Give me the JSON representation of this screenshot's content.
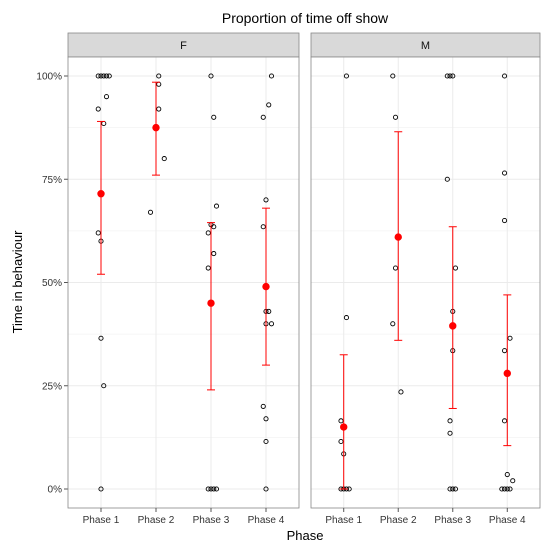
{
  "chart_data": {
    "type": "scatter",
    "title": "Proportion of time off show",
    "xlabel": "Phase",
    "ylabel": "Time in behaviour",
    "categories": [
      "Phase 1",
      "Phase 2",
      "Phase 3",
      "Phase 4"
    ],
    "y_ticks": [
      "0%",
      "25%",
      "50%",
      "75%",
      "100%"
    ],
    "ylim": [
      0,
      1
    ],
    "grid": true,
    "colors": {
      "panel": "#ffffff",
      "panel_border": "#888888",
      "strip": "#d9d9d9",
      "grid": "#ebebeb",
      "points": "#000000",
      "summary": "#ff0000"
    },
    "panels": [
      {
        "strip": "F",
        "points": [
          [
            0.95,
            1.0
          ],
          [
            1.0,
            1.0
          ],
          [
            1.05,
            1.0
          ],
          [
            1.1,
            1.0
          ],
          [
            1.15,
            1.0
          ],
          [
            1.1,
            0.95
          ],
          [
            0.95,
            0.92
          ],
          [
            1.05,
            0.885
          ],
          [
            0.95,
            0.62
          ],
          [
            1.0,
            0.6
          ],
          [
            1.0,
            0.365
          ],
          [
            1.05,
            0.25
          ],
          [
            1.0,
            0.0
          ],
          [
            2.05,
            1.0
          ],
          [
            2.05,
            0.98
          ],
          [
            2.05,
            0.92
          ],
          [
            2.15,
            0.8
          ],
          [
            1.9,
            0.67
          ],
          [
            3.0,
            1.0
          ],
          [
            3.05,
            0.9
          ],
          [
            3.1,
            0.685
          ],
          [
            3.0,
            0.64
          ],
          [
            3.05,
            0.635
          ],
          [
            2.95,
            0.62
          ],
          [
            3.05,
            0.57
          ],
          [
            2.95,
            0.535
          ],
          [
            2.95,
            0.0
          ],
          [
            3.0,
            0.0
          ],
          [
            3.05,
            0.0
          ],
          [
            3.1,
            0.0
          ],
          [
            4.1,
            1.0
          ],
          [
            4.05,
            0.93
          ],
          [
            3.95,
            0.9
          ],
          [
            4.0,
            0.7
          ],
          [
            3.95,
            0.635
          ],
          [
            4.0,
            0.43
          ],
          [
            4.05,
            0.43
          ],
          [
            4.0,
            0.4
          ],
          [
            4.1,
            0.4
          ],
          [
            3.95,
            0.2
          ],
          [
            4.0,
            0.17
          ],
          [
            4.0,
            0.115
          ],
          [
            4.0,
            0.0
          ]
        ],
        "summary": [
          {
            "phase": "Phase 1",
            "mean": 0.715,
            "low": 0.52,
            "high": 0.89
          },
          {
            "phase": "Phase 2",
            "mean": 0.875,
            "low": 0.76,
            "high": 0.985
          },
          {
            "phase": "Phase 3",
            "mean": 0.45,
            "low": 0.24,
            "high": 0.645
          },
          {
            "phase": "Phase 4",
            "mean": 0.49,
            "low": 0.3,
            "high": 0.68
          }
        ]
      },
      {
        "strip": "M",
        "points": [
          [
            1.05,
            1.0
          ],
          [
            1.05,
            0.415
          ],
          [
            0.95,
            0.165
          ],
          [
            0.95,
            0.115
          ],
          [
            1.0,
            0.085
          ],
          [
            0.95,
            0.0
          ],
          [
            1.0,
            0.0
          ],
          [
            1.05,
            0.0
          ],
          [
            1.1,
            0.0
          ],
          [
            1.9,
            1.0
          ],
          [
            1.95,
            0.9
          ],
          [
            1.95,
            0.535
          ],
          [
            1.9,
            0.4
          ],
          [
            2.05,
            0.235
          ],
          [
            2.9,
            1.0
          ],
          [
            2.95,
            1.0
          ],
          [
            3.0,
            1.0
          ],
          [
            2.9,
            0.75
          ],
          [
            3.05,
            0.535
          ],
          [
            3.0,
            0.43
          ],
          [
            3.0,
            0.335
          ],
          [
            2.95,
            0.165
          ],
          [
            2.95,
            0.135
          ],
          [
            2.95,
            0.0
          ],
          [
            3.0,
            0.0
          ],
          [
            3.05,
            0.0
          ],
          [
            3.95,
            1.0
          ],
          [
            3.95,
            0.765
          ],
          [
            3.95,
            0.65
          ],
          [
            4.05,
            0.365
          ],
          [
            3.95,
            0.335
          ],
          [
            3.95,
            0.165
          ],
          [
            4.0,
            0.035
          ],
          [
            4.1,
            0.02
          ],
          [
            3.9,
            0.0
          ],
          [
            3.95,
            0.0
          ],
          [
            4.0,
            0.0
          ],
          [
            4.05,
            0.0
          ]
        ],
        "summary": [
          {
            "phase": "Phase 1",
            "mean": 0.15,
            "low": 0.0,
            "high": 0.325
          },
          {
            "phase": "Phase 2",
            "mean": 0.61,
            "low": 0.36,
            "high": 0.865
          },
          {
            "phase": "Phase 3",
            "mean": 0.395,
            "low": 0.195,
            "high": 0.635
          },
          {
            "phase": "Phase 4",
            "mean": 0.28,
            "low": 0.105,
            "high": 0.47
          }
        ]
      }
    ]
  }
}
